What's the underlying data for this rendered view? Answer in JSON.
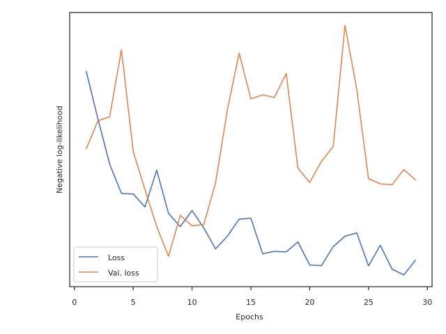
{
  "chart_data": {
    "type": "line",
    "title": "",
    "xlabel": "Epochs",
    "ylabel": "Negative log-likelihood",
    "xlim": [
      -0.4,
      30.4
    ],
    "ylim": [
      0,
      1
    ],
    "xticks": [
      0,
      5,
      10,
      15,
      20,
      25,
      30
    ],
    "yticks_shown": false,
    "grid": false,
    "legend_position": "bottom-left",
    "x": [
      1,
      2,
      3,
      4,
      5,
      6,
      7,
      8,
      9,
      10,
      11,
      12,
      13,
      14,
      15,
      16,
      17,
      18,
      19,
      20,
      21,
      22,
      23,
      24,
      25,
      26,
      27,
      28,
      29
    ],
    "series": [
      {
        "name": "Loss",
        "color": "#4c72b0",
        "values": [
          0.787,
          0.612,
          0.447,
          0.34,
          0.338,
          0.291,
          0.425,
          0.267,
          0.219,
          0.278,
          0.214,
          0.138,
          0.184,
          0.246,
          0.25,
          0.12,
          0.129,
          0.127,
          0.163,
          0.079,
          0.077,
          0.146,
          0.184,
          0.196,
          0.076,
          0.151,
          0.064,
          0.043,
          0.097
        ]
      },
      {
        "name": "Val. loss",
        "color": "#dd8452",
        "values": [
          0.502,
          0.605,
          0.62,
          0.864,
          0.493,
          0.354,
          0.219,
          0.111,
          0.26,
          0.222,
          0.227,
          0.379,
          0.644,
          0.852,
          0.685,
          0.7,
          0.69,
          0.778,
          0.432,
          0.38,
          0.457,
          0.511,
          0.953,
          0.72,
          0.394,
          0.375,
          0.372,
          0.427,
          0.389
        ]
      }
    ]
  }
}
